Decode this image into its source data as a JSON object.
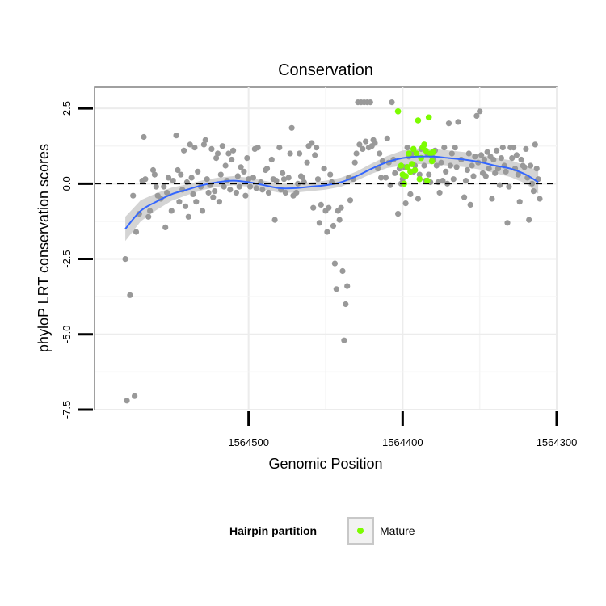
{
  "chart_data": {
    "type": "scatter",
    "title": "Conservation",
    "xlabel": "Genomic Position",
    "ylabel": "phyloP LRT conservation scores",
    "x_reversed": true,
    "xlim": [
      1564300,
      1564600
    ],
    "ylim": [
      -7.5,
      3.2
    ],
    "x_ticks": [
      1564500,
      1564400,
      1564300
    ],
    "y_ticks": [
      2.5,
      0.0,
      -2.5,
      -5.0,
      -7.5
    ],
    "x_tick_labels": [
      "1564500",
      "1564400",
      "1564300"
    ],
    "y_tick_labels": [
      "2.5",
      "0.0",
      "-2.5",
      "-5.0",
      "-7.5"
    ],
    "reference_line_y": 0,
    "grid": true,
    "legend_position": "bottom",
    "legend": {
      "title": "Hairpin partition",
      "entries": [
        {
          "label": "Mature",
          "color": "#7cfc00"
        }
      ]
    },
    "colors": {
      "points": "#999999",
      "mature": "#7cfc00",
      "smooth_line": "#3366ff",
      "smooth_band": "#cccccc"
    },
    "series": [
      {
        "points": [
          [
            1564580,
            -2.5
          ],
          [
            1564579,
            -7.2
          ],
          [
            1564577,
            -3.7
          ],
          [
            1564575,
            -0.4
          ],
          [
            1564574,
            -7.05
          ],
          [
            1564573,
            -1.6
          ],
          [
            1564571,
            -1.0
          ],
          [
            1564569,
            0.1
          ],
          [
            1564568,
            1.55
          ],
          [
            1564567,
            0.15
          ],
          [
            1564565,
            -1.1
          ],
          [
            1564564,
            -0.9
          ],
          [
            1564562,
            0.45
          ],
          [
            1564561,
            0.3
          ],
          [
            1564560,
            -0.1
          ],
          [
            1564559,
            -0.4
          ],
          [
            1564557,
            -0.5
          ],
          [
            1564555,
            -0.1
          ],
          [
            1564554,
            -1.45
          ],
          [
            1564553,
            -0.3
          ],
          [
            1564552,
            0.2
          ],
          [
            1564550,
            -0.9
          ],
          [
            1564549,
            0.1
          ],
          [
            1564547,
            1.6
          ],
          [
            1564546,
            0.45
          ],
          [
            1564545,
            -0.6
          ],
          [
            1564544,
            0.3
          ],
          [
            1564543,
            -0.2
          ],
          [
            1564542,
            1.1
          ],
          [
            1564541,
            -0.75
          ],
          [
            1564540,
            0.05
          ],
          [
            1564539,
            -1.1
          ],
          [
            1564538,
            1.3
          ],
          [
            1564537,
            0.2
          ],
          [
            1564536,
            -0.35
          ],
          [
            1564535,
            1.2
          ],
          [
            1564534,
            -0.6
          ],
          [
            1564533,
            0.4
          ],
          [
            1564531,
            -0.1
          ],
          [
            1564530,
            -0.9
          ],
          [
            1564529,
            1.3
          ],
          [
            1564528,
            1.45
          ],
          [
            1564527,
            0.15
          ],
          [
            1564526,
            -0.3
          ],
          [
            1564525,
            -0.05
          ],
          [
            1564524,
            1.15
          ],
          [
            1564523,
            -0.45
          ],
          [
            1564522,
            -0.25
          ],
          [
            1564521,
            0.85
          ],
          [
            1564520,
            1.0
          ],
          [
            1564519,
            -0.6
          ],
          [
            1564518,
            0.3
          ],
          [
            1564517,
            1.25
          ],
          [
            1564516,
            -0.1
          ],
          [
            1564515,
            0.6
          ],
          [
            1564514,
            0.1
          ],
          [
            1564513,
            1.0
          ],
          [
            1564512,
            -0.2
          ],
          [
            1564511,
            0.8
          ],
          [
            1564510,
            1.1
          ],
          [
            1564508,
            -0.3
          ],
          [
            1564507,
            0.25
          ],
          [
            1564506,
            -0.1
          ],
          [
            1564505,
            0.55
          ],
          [
            1564503,
            0.4
          ],
          [
            1564502,
            -0.4
          ],
          [
            1564501,
            0.85
          ],
          [
            1564500,
            0.15
          ],
          [
            1564499,
            -0.1
          ],
          [
            1564497,
            0.2
          ],
          [
            1564496,
            1.15
          ],
          [
            1564495,
            -0.15
          ],
          [
            1564494,
            1.2
          ],
          [
            1564492,
            0.05
          ],
          [
            1564491,
            -0.2
          ],
          [
            1564489,
            0.45
          ],
          [
            1564488,
            0.5
          ],
          [
            1564487,
            -0.3
          ],
          [
            1564485,
            0.8
          ],
          [
            1564484,
            0.15
          ],
          [
            1564483,
            -1.2
          ],
          [
            1564482,
            0.1
          ],
          [
            1564480,
            1.2
          ],
          [
            1564479,
            -0.2
          ],
          [
            1564478,
            0.35
          ],
          [
            1564477,
            0.15
          ],
          [
            1564476,
            -0.3
          ],
          [
            1564474,
            0.2
          ],
          [
            1564473,
            1.0
          ],
          [
            1564472,
            1.85
          ],
          [
            1564471,
            -0.4
          ],
          [
            1564469,
            -0.3
          ],
          [
            1564468,
            0.0
          ],
          [
            1564467,
            1.0
          ],
          [
            1564466,
            0.25
          ],
          [
            1564465,
            0.2
          ],
          [
            1564464,
            0.05
          ],
          [
            1564462,
            0.7
          ],
          [
            1564461,
            1.25
          ],
          [
            1564459,
            1.35
          ],
          [
            1564458,
            -0.8
          ],
          [
            1564457,
            0.95
          ],
          [
            1564456,
            1.2
          ],
          [
            1564455,
            0.15
          ],
          [
            1564454,
            -1.3
          ],
          [
            1564453,
            -0.7
          ],
          [
            1564451,
            0.5
          ],
          [
            1564450,
            -0.9
          ],
          [
            1564449,
            -1.6
          ],
          [
            1564448,
            -0.8
          ],
          [
            1564447,
            0.3
          ],
          [
            1564446,
            0.05
          ],
          [
            1564445,
            -1.4
          ],
          [
            1564444,
            -2.65
          ],
          [
            1564443,
            -3.5
          ],
          [
            1564442,
            -0.9
          ],
          [
            1564441,
            -1.2
          ],
          [
            1564440,
            -0.8
          ],
          [
            1564439,
            -2.9
          ],
          [
            1564438,
            -5.2
          ],
          [
            1564437,
            -4.0
          ],
          [
            1564436,
            -3.4
          ],
          [
            1564435,
            0.2
          ],
          [
            1564434,
            -0.55
          ],
          [
            1564432,
            0.15
          ],
          [
            1564431,
            0.7
          ],
          [
            1564430,
            1.0
          ],
          [
            1564429,
            2.7
          ],
          [
            1564428,
            1.3
          ],
          [
            1564427,
            2.7
          ],
          [
            1564426,
            1.15
          ],
          [
            1564425,
            2.7
          ],
          [
            1564424,
            1.4
          ],
          [
            1564423,
            2.7
          ],
          [
            1564422,
            1.2
          ],
          [
            1564421,
            2.7
          ],
          [
            1564420,
            1.25
          ],
          [
            1564419,
            1.45
          ],
          [
            1564418,
            1.35
          ],
          [
            1564416,
            0.5
          ],
          [
            1564415,
            1.0
          ],
          [
            1564414,
            0.2
          ],
          [
            1564413,
            0.75
          ],
          [
            1564411,
            0.2
          ],
          [
            1564410,
            1.5
          ],
          [
            1564409,
            0.7
          ],
          [
            1564408,
            -0.05
          ],
          [
            1564407,
            2.7
          ],
          [
            1564406,
            0.8
          ],
          [
            1564405,
            0.35
          ],
          [
            1564403,
            -1.0
          ],
          [
            1564402,
            0.5
          ],
          [
            1564401,
            0.0
          ],
          [
            1564400,
            0.15
          ],
          [
            1564399,
            0.55
          ],
          [
            1564398,
            -0.65
          ],
          [
            1564397,
            1.2
          ],
          [
            1564396,
            0.9
          ],
          [
            1564395,
            -0.35
          ],
          [
            1564394,
            1.0
          ],
          [
            1564393,
            0.4
          ],
          [
            1564392,
            0.6
          ],
          [
            1564390,
            -0.5
          ],
          [
            1564389,
            0.3
          ],
          [
            1564388,
            1.15
          ],
          [
            1564386,
            0.6
          ],
          [
            1564385,
            0.1
          ],
          [
            1564384,
            1.0
          ],
          [
            1564383,
            0.3
          ],
          [
            1564382,
            0.05
          ],
          [
            1564381,
            0.9
          ],
          [
            1564380,
            0.8
          ],
          [
            1564379,
            1.1
          ],
          [
            1564378,
            0.6
          ],
          [
            1564377,
            0.05
          ],
          [
            1564376,
            -0.3
          ],
          [
            1564375,
            0.7
          ],
          [
            1564374,
            0.1
          ],
          [
            1564373,
            1.2
          ],
          [
            1564372,
            0.4
          ],
          [
            1564371,
            0.0
          ],
          [
            1564370,
            2.0
          ],
          [
            1564369,
            0.6
          ],
          [
            1564368,
            1.0
          ],
          [
            1564367,
            0.15
          ],
          [
            1564366,
            1.2
          ],
          [
            1564365,
            0.55
          ],
          [
            1564364,
            2.05
          ],
          [
            1564362,
            0.8
          ],
          [
            1564360,
            -0.45
          ],
          [
            1564359,
            0.1
          ],
          [
            1564358,
            0.45
          ],
          [
            1564357,
            1.0
          ],
          [
            1564356,
            -0.7
          ],
          [
            1564355,
            0.6
          ],
          [
            1564354,
            0.25
          ],
          [
            1564353,
            0.9
          ],
          [
            1564352,
            2.25
          ],
          [
            1564351,
            0.7
          ],
          [
            1564350,
            2.4
          ],
          [
            1564349,
            0.95
          ],
          [
            1564348,
            0.35
          ],
          [
            1564347,
            0.8
          ],
          [
            1564346,
            0.25
          ],
          [
            1564345,
            1.05
          ],
          [
            1564344,
            0.5
          ],
          [
            1564343,
            0.9
          ],
          [
            1564342,
            -0.5
          ],
          [
            1564341,
            0.8
          ],
          [
            1564340,
            0.35
          ],
          [
            1564339,
            1.1
          ],
          [
            1564338,
            0.5
          ],
          [
            1564337,
            -0.05
          ],
          [
            1564336,
            0.85
          ],
          [
            1564335,
            1.2
          ],
          [
            1564334,
            0.6
          ],
          [
            1564333,
            0.4
          ],
          [
            1564332,
            -1.3
          ],
          [
            1564331,
            -0.1
          ],
          [
            1564330,
            1.2
          ],
          [
            1564329,
            0.85
          ],
          [
            1564328,
            1.2
          ],
          [
            1564327,
            0.5
          ],
          [
            1564326,
            0.95
          ],
          [
            1564325,
            0.3
          ],
          [
            1564324,
            -0.6
          ],
          [
            1564323,
            0.8
          ],
          [
            1564322,
            0.6
          ],
          [
            1564321,
            0.55
          ],
          [
            1564320,
            1.15
          ],
          [
            1564319,
            0.2
          ],
          [
            1564318,
            -1.2
          ],
          [
            1564317,
            0.6
          ],
          [
            1564316,
            0.0
          ],
          [
            1564315,
            -0.25
          ],
          [
            1564314,
            1.3
          ],
          [
            1564313,
            0.5
          ],
          [
            1564312,
            0.15
          ],
          [
            1564311,
            -0.5
          ]
        ]
      },
      {
        "name": "Mature",
        "points": [
          [
            1564403,
            2.4
          ],
          [
            1564401,
            0.6
          ],
          [
            1564400,
            0.3
          ],
          [
            1564399,
            0.0
          ],
          [
            1564398,
            0.25
          ],
          [
            1564397,
            0.55
          ],
          [
            1564396,
            1.0
          ],
          [
            1564395,
            0.4
          ],
          [
            1564394,
            0.65
          ],
          [
            1564393,
            1.15
          ],
          [
            1564392,
            0.45
          ],
          [
            1564391,
            1.0
          ],
          [
            1564390,
            2.1
          ],
          [
            1564389,
            0.15
          ],
          [
            1564388,
            0.85
          ],
          [
            1564387,
            1.2
          ],
          [
            1564386,
            1.3
          ],
          [
            1564385,
            1.1
          ],
          [
            1564384,
            0.1
          ],
          [
            1564383,
            2.2
          ],
          [
            1564382,
            1.0
          ],
          [
            1564381,
            0.75
          ],
          [
            1564380,
            1.05
          ]
        ]
      }
    ],
    "smooth_line": [
      [
        1564580,
        -1.5
      ],
      [
        1564570,
        -0.9
      ],
      [
        1564560,
        -0.6
      ],
      [
        1564550,
        -0.35
      ],
      [
        1564540,
        -0.2
      ],
      [
        1564530,
        -0.05
      ],
      [
        1564520,
        0.05
      ],
      [
        1564510,
        0.1
      ],
      [
        1564500,
        0.05
      ],
      [
        1564490,
        -0.05
      ],
      [
        1564480,
        -0.15
      ],
      [
        1564470,
        -0.15
      ],
      [
        1564460,
        -0.1
      ],
      [
        1564450,
        -0.05
      ],
      [
        1564440,
        0.05
      ],
      [
        1564430,
        0.25
      ],
      [
        1564420,
        0.5
      ],
      [
        1564410,
        0.72
      ],
      [
        1564400,
        0.85
      ],
      [
        1564390,
        0.9
      ],
      [
        1564380,
        0.9
      ],
      [
        1564370,
        0.85
      ],
      [
        1564360,
        0.8
      ],
      [
        1564350,
        0.72
      ],
      [
        1564340,
        0.6
      ],
      [
        1564330,
        0.5
      ],
      [
        1564320,
        0.3
      ],
      [
        1564312,
        0.05
      ]
    ],
    "smooth_band_halfwidth": [
      0.4,
      0.35,
      0.28,
      0.22,
      0.18,
      0.16,
      0.15,
      0.15,
      0.15,
      0.15,
      0.15,
      0.15,
      0.15,
      0.15,
      0.15,
      0.15,
      0.17,
      0.2,
      0.25,
      0.25,
      0.25,
      0.25,
      0.25,
      0.25,
      0.25,
      0.28,
      0.3,
      0.38
    ]
  }
}
